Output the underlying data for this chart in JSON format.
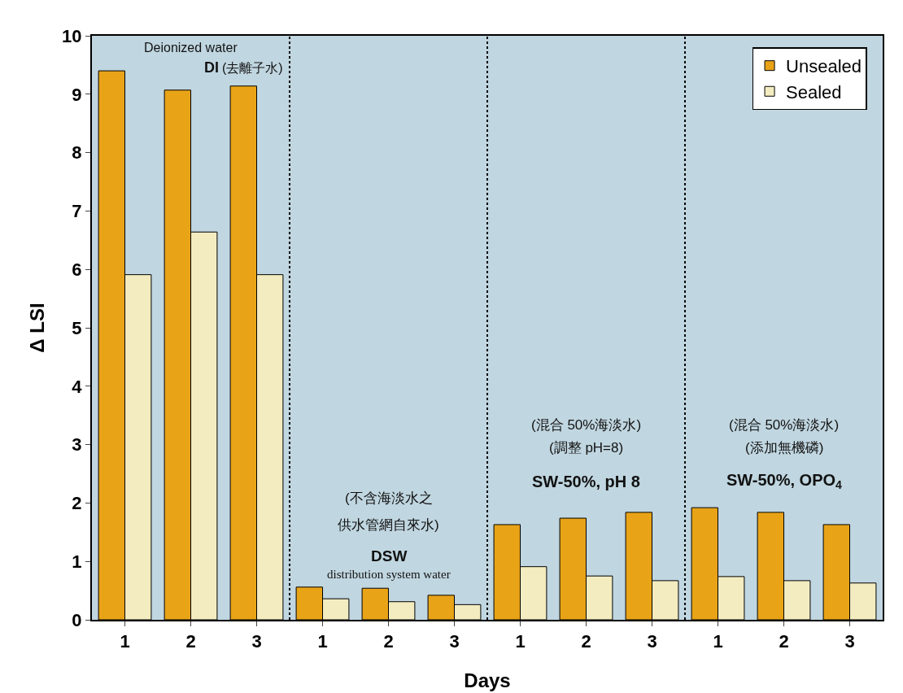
{
  "chart_data": {
    "type": "bar",
    "xlabel": "Days",
    "ylabel": "Δ LSI",
    "categories": [
      "1",
      "2",
      "3",
      "1",
      "2",
      "3",
      "1",
      "2",
      "3",
      "1",
      "2",
      "3"
    ],
    "series": [
      {
        "name": "Unsealed",
        "color": "#e8a317",
        "values": [
          9.4,
          9.07,
          9.14,
          0.56,
          0.54,
          0.42,
          1.63,
          1.74,
          1.84,
          1.92,
          1.84,
          1.63
        ]
      },
      {
        "name": "Sealed",
        "color": "#f3ecc0",
        "values": [
          5.91,
          6.64,
          5.91,
          0.36,
          0.31,
          0.26,
          0.91,
          0.75,
          0.67,
          0.74,
          0.67,
          0.63
        ]
      }
    ],
    "ylim": [
      0,
      10
    ],
    "yticks": [
      0,
      1,
      2,
      3,
      4,
      5,
      6,
      7,
      8,
      9,
      10
    ],
    "grid": false,
    "legend": "top right",
    "annotations": [
      "Deionized water",
      "DI",
      "(去離子水)",
      "(不含海淡水之",
      "供水管網自來水)",
      "DSW",
      "distribution system water",
      "(混合 50%海淡水)",
      "(調整 pH=8)",
      "SW-50%, pH 8",
      "(混合 50%海淡水)",
      "(添加無機磷)",
      "SW-50%, OPO$_{4}$"
    ]
  }
}
